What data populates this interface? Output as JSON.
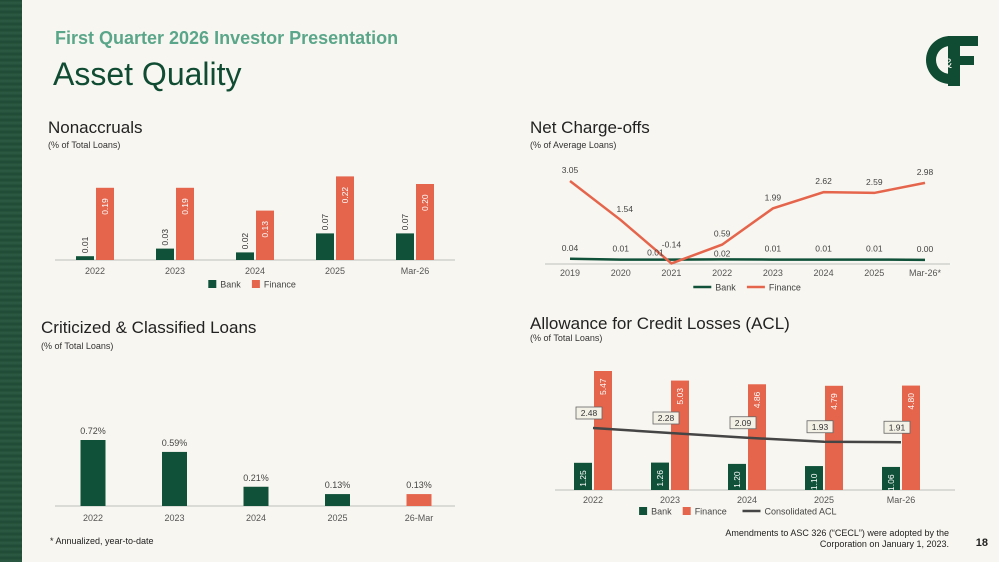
{
  "header": {
    "supertitle": "First Quarter 2026 Investor Presentation",
    "title": "Asset Quality"
  },
  "footer": {
    "footnote": "* Annualized, year-to-date",
    "amendment_line1": "Amendments to ASC 326 (“CECL”) were adopted by the",
    "amendment_line2": "Corporation on January 1, 2023.",
    "page_number": "18"
  },
  "colors": {
    "bank": "#0f5139",
    "finance": "#e5654c",
    "consolidated": "#454545",
    "accent": "#5aa68a"
  },
  "chart_data": [
    {
      "id": "nonaccruals",
      "type": "bar",
      "title": "Nonaccruals",
      "subtitle": "(% of Total Loans)",
      "categories": [
        "2022",
        "2023",
        "2024",
        "2025",
        "Mar-26"
      ],
      "series": [
        {
          "name": "Bank",
          "values": [
            0.01,
            0.03,
            0.02,
            0.07,
            0.07
          ],
          "labels": [
            "0.01",
            "0.03",
            "0.02",
            "0.07",
            "0.07"
          ]
        },
        {
          "name": "Finance",
          "values": [
            0.19,
            0.19,
            0.13,
            0.22,
            0.2
          ],
          "labels": [
            "0.19",
            "0.19",
            "0.13",
            "0.22",
            "0.20"
          ]
        }
      ],
      "ylim": [
        0,
        0.25
      ],
      "legend": "bottom"
    },
    {
      "id": "net-chargeoffs",
      "type": "line",
      "title": "Net Charge-offs",
      "subtitle": "(% of Average Loans)",
      "categories": [
        "2019",
        "2020",
        "2021",
        "2022",
        "2023",
        "2024",
        "2025",
        "Mar-26*"
      ],
      "series": [
        {
          "name": "Bank",
          "values": [
            0.04,
            0.01,
            0.01,
            0.02,
            0.01,
            0.01,
            0.01,
            0.0
          ],
          "labels": [
            "0.04",
            "0.01",
            "0.01",
            "0.02",
            "0.01",
            "0.01",
            "0.01",
            "0.00"
          ]
        },
        {
          "name": "Finance",
          "values": [
            3.05,
            1.54,
            -0.14,
            0.59,
            1.99,
            2.62,
            2.59,
            2.98
          ],
          "labels": [
            "3.05",
            "1.54",
            "-0.14",
            "0.59",
            "1.99",
            "2.62",
            "2.59",
            "2.98"
          ]
        }
      ],
      "ylim": [
        -0.2,
        3.4
      ],
      "legend": "bottom"
    },
    {
      "id": "criticized-classified",
      "type": "bar",
      "title": "Criticized & Classified Loans",
      "subtitle": "(% of Total Loans)",
      "categories": [
        "2022",
        "2023",
        "2024",
        "2025",
        "26-Mar"
      ],
      "values": [
        0.72,
        0.59,
        0.21,
        0.13,
        0.13
      ],
      "labels": [
        "0.72%",
        "0.59%",
        "0.21%",
        "0.13%",
        "0.13%"
      ],
      "bar_colors": [
        "bank",
        "bank",
        "bank",
        "bank",
        "finance"
      ],
      "ylim": [
        0,
        0.85
      ]
    },
    {
      "id": "acl",
      "type": "bar",
      "title": "Allowance for Credit Losses (ACL)",
      "subtitle": "(% of Total Loans)",
      "categories": [
        "2022",
        "2023",
        "2024",
        "2025",
        "Mar-26"
      ],
      "series": [
        {
          "name": "Bank",
          "values": [
            1.25,
            1.26,
            1.2,
            1.1,
            1.06
          ],
          "labels": [
            "1.25",
            "1.26",
            "1.20",
            "1.10",
            "1.06"
          ]
        },
        {
          "name": "Finance",
          "values": [
            5.47,
            5.03,
            4.86,
            4.79,
            4.8
          ],
          "labels": [
            "5.47",
            "5.03",
            "4.86",
            "4.79",
            "4.80"
          ]
        },
        {
          "name": "Consolidated ACL",
          "type": "line",
          "values": [
            2.48,
            2.28,
            2.09,
            1.93,
            1.91
          ],
          "labels": [
            "2.48",
            "2.28",
            "2.09",
            "1.93",
            "1.91"
          ]
        }
      ],
      "ylim": [
        0,
        5.8
      ],
      "legend": "bottom"
    }
  ]
}
